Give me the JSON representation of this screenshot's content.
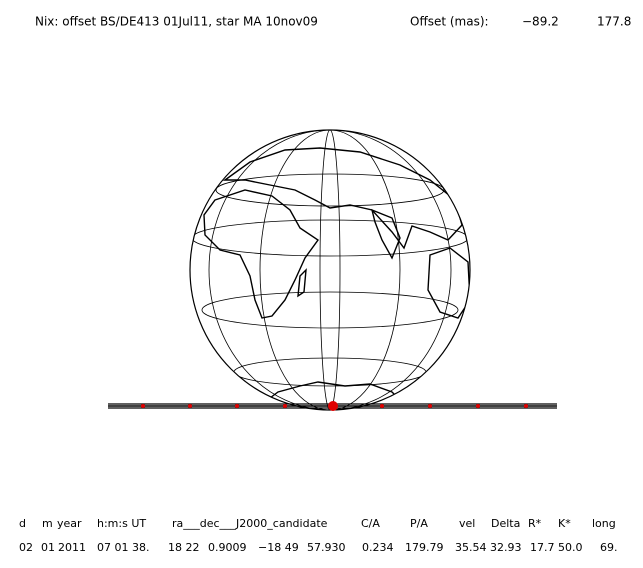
{
  "header": {
    "title": "Nix: offset BS/DE413 01Jul11, star MA 10nov09",
    "offset_label": "Offset (mas):",
    "offset_values": [
      "−89.2",
      "177.8"
    ]
  },
  "table": {
    "headers": [
      "d",
      "m",
      "year",
      "h:m:s UT",
      "ra___dec___J2000_candidate",
      "C/A",
      "P/A",
      "vel",
      "Delta",
      "R*",
      "K*",
      "long"
    ],
    "values": [
      "02",
      "01",
      "2011",
      "07 01 38.",
      "18 22",
      "0.9009",
      "−18 49",
      "57.930",
      "0.234",
      "179.79",
      "35.54",
      "32.93",
      "17.7",
      "50.0",
      "69."
    ]
  }
}
